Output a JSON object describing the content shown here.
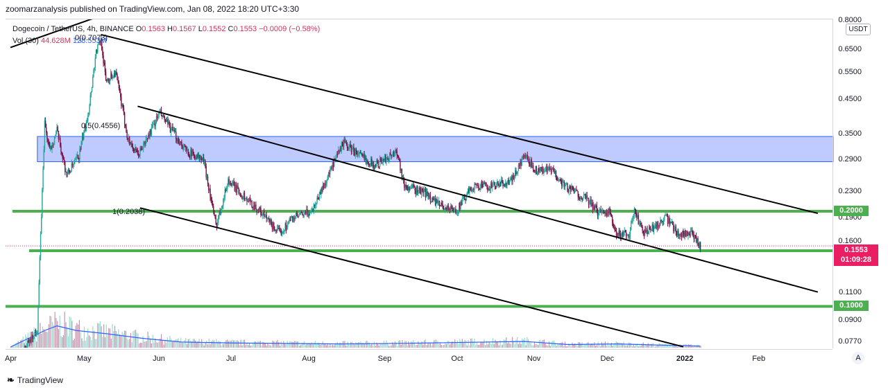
{
  "attribution": "zoomarzanalysis published on TradingView.com, Jan 08, 2022 18:20 UTC+3:30",
  "legend": {
    "symbol": "Dogecoin / TetherUS, 4h, BINANCE",
    "open_label": "O",
    "open": "0.1563",
    "high_label": "H",
    "high": "0.1567",
    "low_label": "L",
    "low": "0.1552",
    "close_label": "C",
    "close": "0.1553",
    "change": "−0.0009 (−0.58%)",
    "vol_label": "Vol (30)",
    "vol_value": "44.628M",
    "vol_ma": "128.553M"
  },
  "currency_button": "USDT",
  "current_price": "0.1553",
  "countdown": "01:09:28",
  "auto_scale_button": "A",
  "logo_text": "TradingView",
  "fib_labels": [
    "0(0.7073)",
    "0.5(0.4556)",
    "1(0.2038)"
  ],
  "colors": {
    "candle_up": "#26a69a",
    "candle_down": "#7b1447",
    "zone_fill": "#a9baff",
    "zone_border": "#2962ff",
    "support_green": "#4caf50",
    "price_red": "#e91e63",
    "volume_ma": "#2962ff"
  },
  "chart_data": {
    "type": "candlestick",
    "title": "Dogecoin / TetherUS, 4h, BINANCE",
    "ylabel": "USDT",
    "yscale": "log",
    "ylim": [
      0.074,
      0.81
    ],
    "y_ticks": [
      "0.8000",
      "0.6500",
      "0.5500",
      "0.4500",
      "0.3500",
      "0.2900",
      "0.2300",
      "0.1900",
      "0.1600",
      "0.1100",
      "0.0900",
      "0.0770"
    ],
    "x_ticks": [
      "Apr",
      "May",
      "Jun",
      "Jul",
      "Aug",
      "Sep",
      "Oct",
      "Nov",
      "Dec",
      "2022",
      "Feb"
    ],
    "price_path": [
      [
        "2021-04-01",
        0.062
      ],
      [
        "2021-04-12",
        0.085
      ],
      [
        "2021-04-15",
        0.38
      ],
      [
        "2021-04-17",
        0.31
      ],
      [
        "2021-04-20",
        0.36
      ],
      [
        "2021-04-24",
        0.26
      ],
      [
        "2021-04-29",
        0.3
      ],
      [
        "2021-05-03",
        0.42
      ],
      [
        "2021-05-06",
        0.64
      ],
      [
        "2021-05-08",
        0.7
      ],
      [
        "2021-05-10",
        0.52
      ],
      [
        "2021-05-14",
        0.55
      ],
      [
        "2021-05-19",
        0.34
      ],
      [
        "2021-05-23",
        0.3
      ],
      [
        "2021-05-26",
        0.33
      ],
      [
        "2021-06-01",
        0.41
      ],
      [
        "2021-06-06",
        0.36
      ],
      [
        "2021-06-12",
        0.31
      ],
      [
        "2021-06-19",
        0.29
      ],
      [
        "2021-06-24",
        0.18
      ],
      [
        "2021-06-29",
        0.25
      ],
      [
        "2021-07-06",
        0.22
      ],
      [
        "2021-07-12",
        0.2
      ],
      [
        "2021-07-20",
        0.17
      ],
      [
        "2021-07-25",
        0.19
      ],
      [
        "2021-08-02",
        0.2
      ],
      [
        "2021-08-08",
        0.25
      ],
      [
        "2021-08-15",
        0.33
      ],
      [
        "2021-08-22",
        0.3
      ],
      [
        "2021-08-28",
        0.28
      ],
      [
        "2021-09-06",
        0.31
      ],
      [
        "2021-09-09",
        0.24
      ],
      [
        "2021-09-17",
        0.23
      ],
      [
        "2021-09-23",
        0.21
      ],
      [
        "2021-09-30",
        0.2
      ],
      [
        "2021-10-07",
        0.24
      ],
      [
        "2021-10-15",
        0.24
      ],
      [
        "2021-10-23",
        0.25
      ],
      [
        "2021-10-28",
        0.3
      ],
      [
        "2021-11-02",
        0.27
      ],
      [
        "2021-11-08",
        0.27
      ],
      [
        "2021-11-14",
        0.24
      ],
      [
        "2021-11-22",
        0.22
      ],
      [
        "2021-11-27",
        0.2
      ],
      [
        "2021-12-02",
        0.2
      ],
      [
        "2021-12-04",
        0.17
      ],
      [
        "2021-12-10",
        0.17
      ],
      [
        "2021-12-12",
        0.2
      ],
      [
        "2021-12-16",
        0.17
      ],
      [
        "2021-12-21",
        0.18
      ],
      [
        "2021-12-25",
        0.19
      ],
      [
        "2021-12-30",
        0.17
      ],
      [
        "2022-01-04",
        0.17
      ],
      [
        "2022-01-08",
        0.155
      ]
    ],
    "volume_ma": [
      [
        "2021-04-01",
        0.02
      ],
      [
        "2021-04-15",
        0.55
      ],
      [
        "2021-04-20",
        0.7
      ],
      [
        "2021-04-28",
        0.55
      ],
      [
        "2021-05-10",
        0.45
      ],
      [
        "2021-05-25",
        0.3
      ],
      [
        "2021-06-10",
        0.18
      ],
      [
        "2021-07-01",
        0.15
      ],
      [
        "2021-08-15",
        0.12
      ],
      [
        "2021-09-10",
        0.14
      ],
      [
        "2021-10-28",
        0.2
      ],
      [
        "2021-11-15",
        0.1
      ],
      [
        "2021-12-05",
        0.12
      ],
      [
        "2022-01-08",
        0.05
      ]
    ],
    "horizontal_levels": [
      {
        "price": 0.2,
        "label": "0.2000"
      },
      {
        "price": 0.15,
        "label": "0.1500"
      },
      {
        "price": 0.1,
        "label": "0.1000"
      }
    ],
    "resistance_zone": [
      0.287,
      0.345
    ],
    "trendlines": [
      {
        "from": [
          "2021-04-01",
          0.66
        ],
        "to": [
          "2021-05-17",
          0.88
        ]
      },
      {
        "from": [
          "2021-05-08",
          0.725
        ],
        "to": [
          "2022-02-25",
          0.197
        ]
      },
      {
        "from": [
          "2021-05-23",
          0.43
        ],
        "to": [
          "2022-02-25",
          0.111
        ]
      },
      {
        "from": [
          "2021-05-24",
          0.205
        ],
        "to": [
          "2022-01-01",
          0.0745
        ]
      }
    ]
  }
}
